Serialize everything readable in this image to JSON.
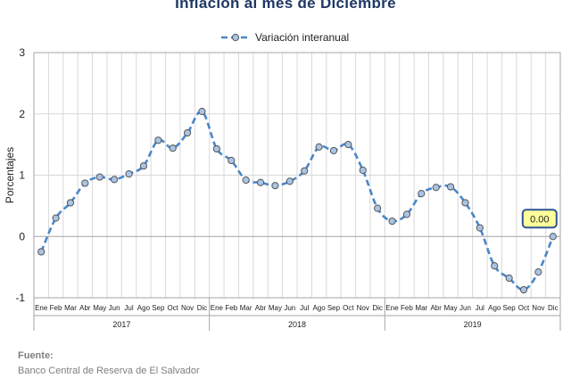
{
  "title": "Inflación al mes de Diciembre",
  "source": {
    "heading": "Fuente:",
    "text": "Banco Central de Reserva de El Salvador"
  },
  "colors": {
    "title": "#1f3864",
    "series": "#4a86c8",
    "marker_fill": "#a9c4e4",
    "marker_stroke": "#555555",
    "grid": "#d9d9d9",
    "axis": "#a6a6a6",
    "annotation_fill": "#ffff99",
    "annotation_stroke": "#2f5496"
  },
  "chart_data": {
    "type": "line",
    "title": "Inflación al mes de Diciembre",
    "ylabel": "Porcentajes",
    "xlabel": "",
    "ylim": [
      -1,
      3
    ],
    "yticks": [
      -1,
      0,
      1,
      2,
      3
    ],
    "grid": true,
    "legend_position": "top-center",
    "months": [
      "Ene",
      "Feb",
      "Mar",
      "Abr",
      "May",
      "Jun",
      "Jul",
      "Ago",
      "Sep",
      "Oct",
      "Nov",
      "Dic"
    ],
    "years": [
      "2017",
      "2018",
      "2019"
    ],
    "categories": [
      "Ene 2017",
      "Feb 2017",
      "Mar 2017",
      "Abr 2017",
      "May 2017",
      "Jun 2017",
      "Jul 2017",
      "Ago 2017",
      "Sep 2017",
      "Oct 2017",
      "Nov 2017",
      "Dic 2017",
      "Ene 2018",
      "Feb 2018",
      "Mar 2018",
      "Abr 2018",
      "May 2018",
      "Jun 2018",
      "Jul 2018",
      "Ago 2018",
      "Sep 2018",
      "Oct 2018",
      "Nov 2018",
      "Dic 2018",
      "Ene 2019",
      "Feb 2019",
      "Mar 2019",
      "Abr 2019",
      "May 2019",
      "Jun 2019",
      "Jul 2019",
      "Ago 2019",
      "Sep 2019",
      "Oct 2019",
      "Nov 2019",
      "Dic 2019"
    ],
    "series": [
      {
        "name": "Variación interanual",
        "values": [
          -0.25,
          0.3,
          0.55,
          0.87,
          0.97,
          0.93,
          1.02,
          1.15,
          1.57,
          1.44,
          1.69,
          2.04,
          1.43,
          1.24,
          0.92,
          0.88,
          0.83,
          0.9,
          1.07,
          1.46,
          1.4,
          1.5,
          1.08,
          0.46,
          0.25,
          0.36,
          0.7,
          0.8,
          0.81,
          0.55,
          0.14,
          -0.48,
          -0.68,
          -0.87,
          -0.58,
          0.0
        ]
      }
    ],
    "annotations": [
      {
        "category": "Dic 2019",
        "value": 0.0,
        "label": "0.00"
      }
    ]
  }
}
